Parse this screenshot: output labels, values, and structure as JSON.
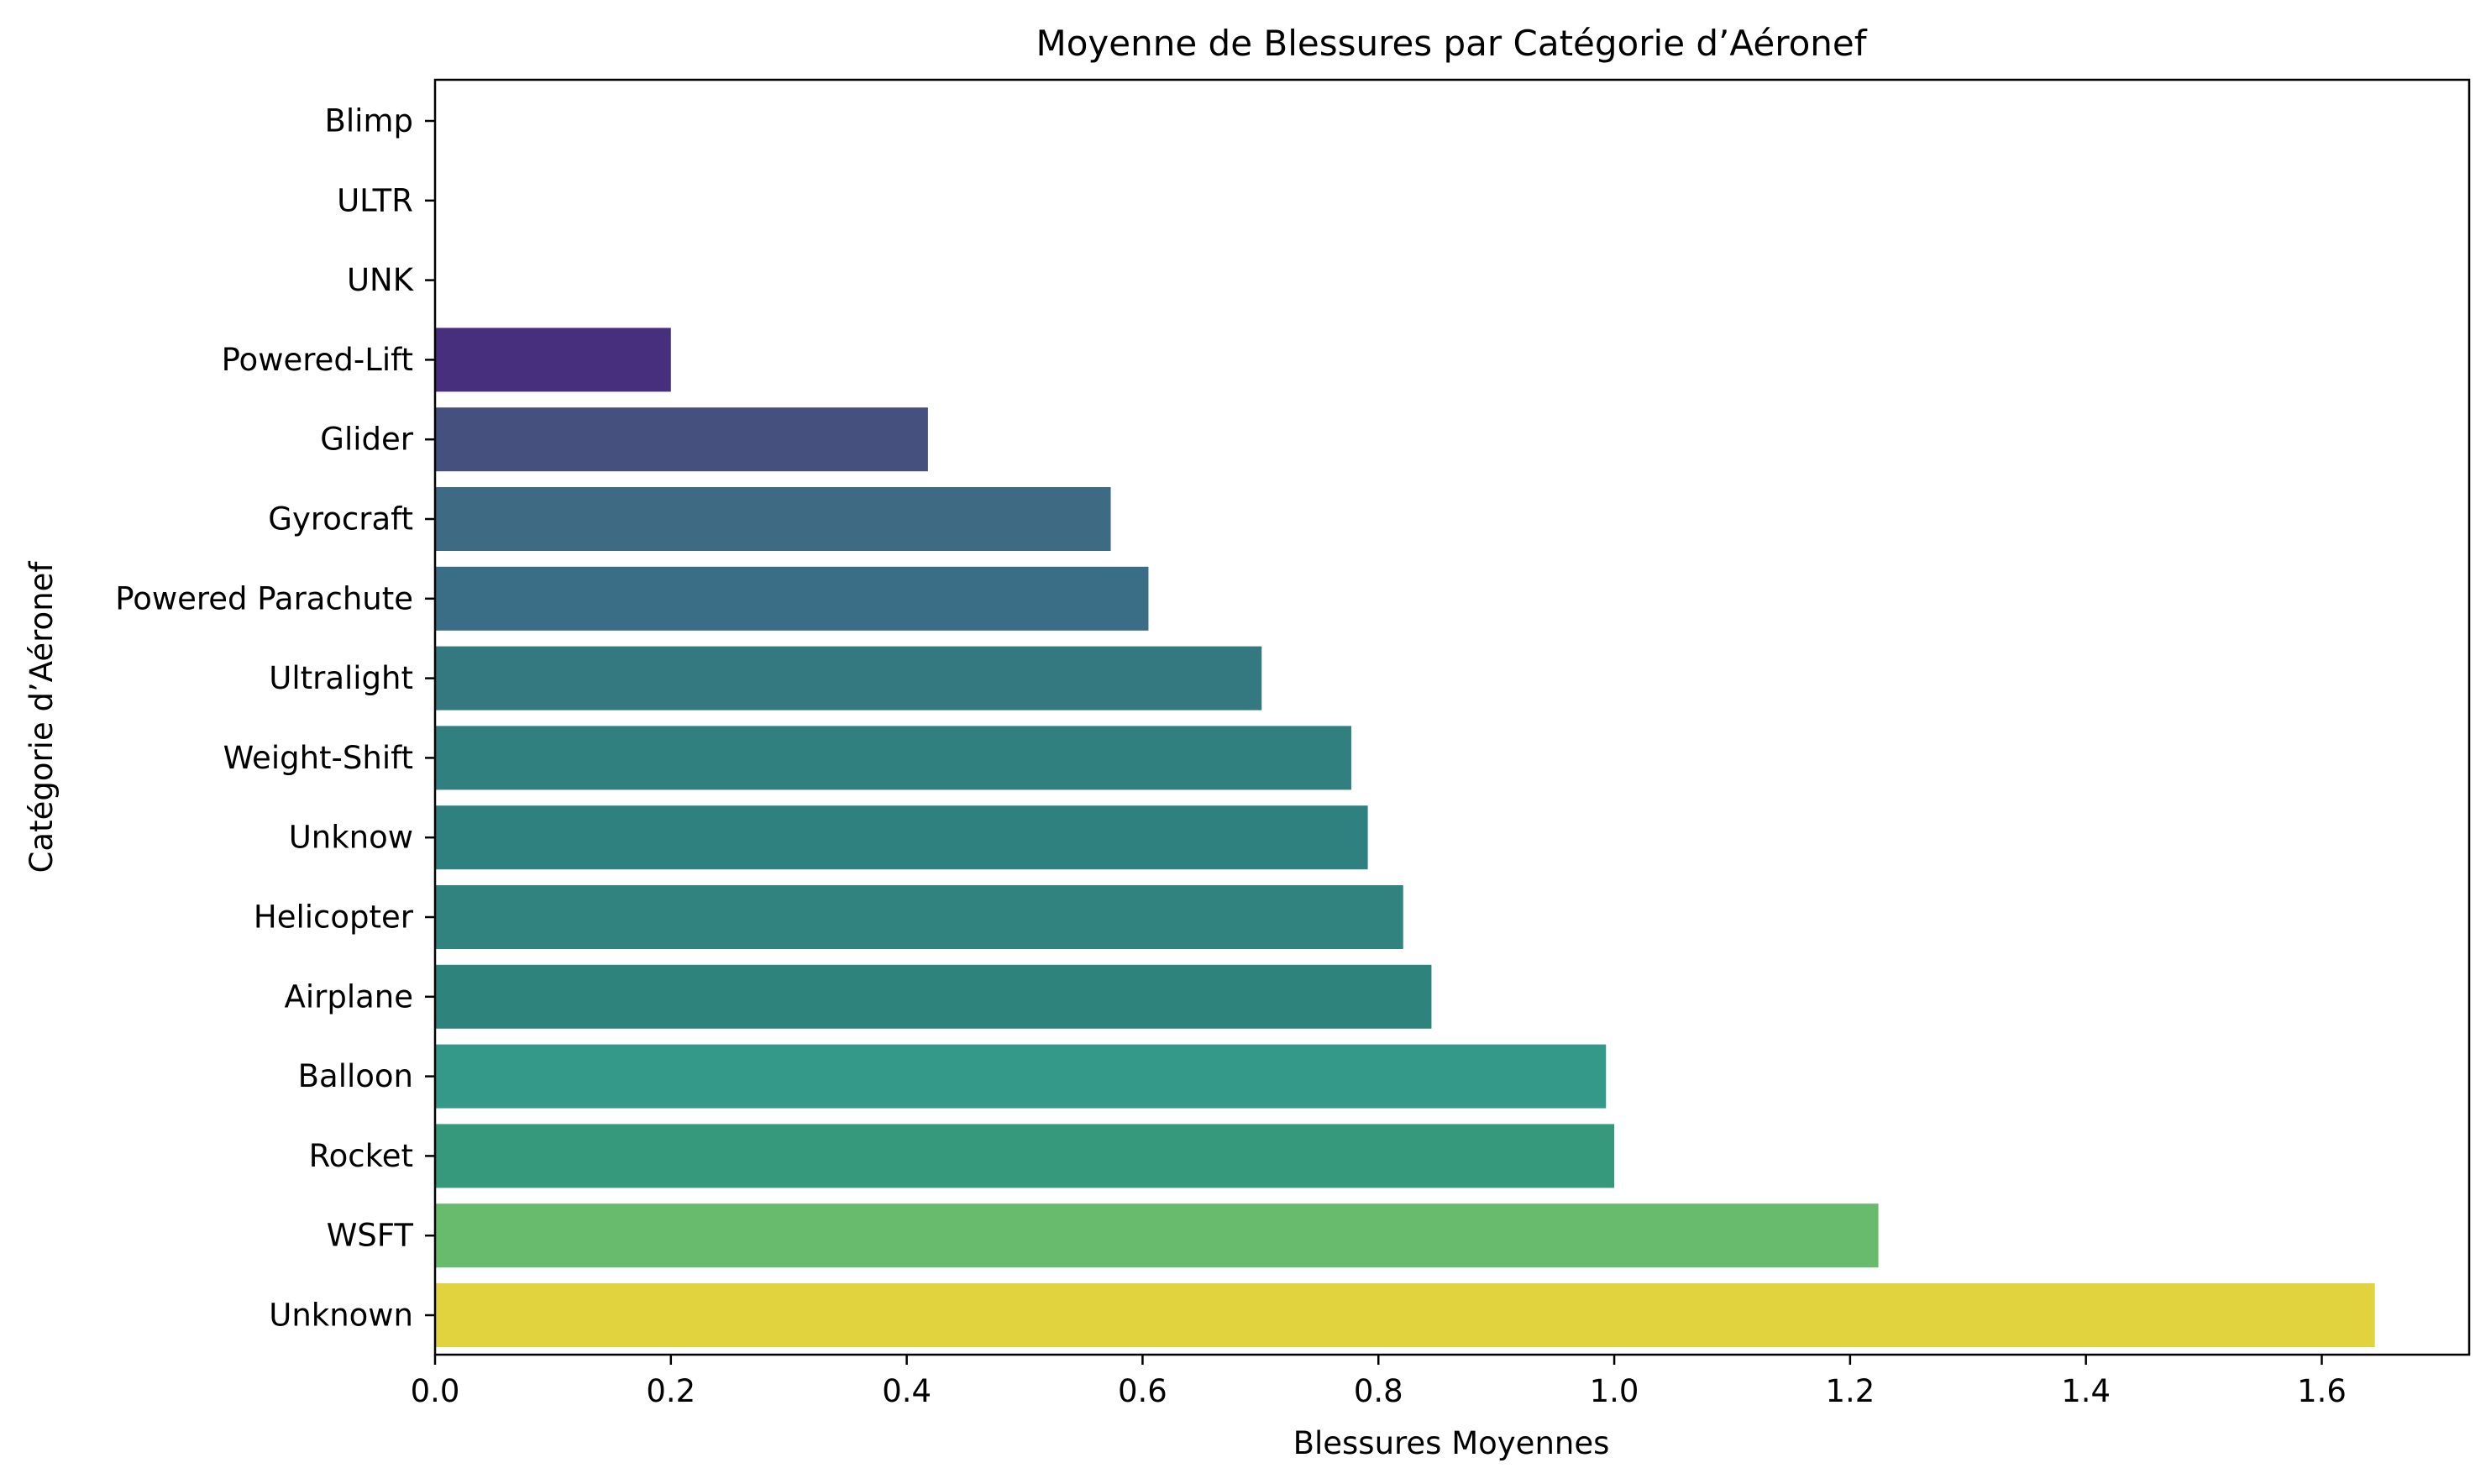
{
  "chart_data": {
    "type": "bar",
    "orientation": "horizontal",
    "title": "Moyenne de Blessures par Catégorie d’Aéronef",
    "xlabel": "Blessures Moyennes",
    "ylabel": "Catégorie d’Aéronef",
    "xlim": [
      0,
      1.725
    ],
    "xticks": [
      "0.0",
      "0.2",
      "0.4",
      "0.6",
      "0.8",
      "1.0",
      "1.2",
      "1.4",
      "1.6"
    ],
    "grid": false,
    "legend": "none",
    "categories": [
      "Blimp",
      "ULTR",
      "UNK",
      "Powered-Lift",
      "Glider",
      "Gyrocraft",
      "Powered Parachute",
      "Ultralight",
      "Weight-Shift",
      "Unknow",
      "Helicopter",
      "Airplane",
      "Balloon",
      "Rocket",
      "WSFT",
      "Unknown"
    ],
    "values": [
      0.0,
      0.0,
      0.0,
      0.2,
      0.418,
      0.573,
      0.605,
      0.701,
      0.777,
      0.791,
      0.821,
      0.845,
      0.993,
      1.0,
      1.224,
      1.645
    ],
    "colors": [
      "#440154",
      "#46327e",
      "#46327e",
      "#472f7d",
      "#46507e",
      "#3e6a84",
      "#3a6d86",
      "#34797f",
      "#2f807e",
      "#2e817f",
      "#30837f",
      "#2e837d",
      "#35998a",
      "#36997c",
      "#68bb6d",
      "#e1d33e"
    ]
  }
}
